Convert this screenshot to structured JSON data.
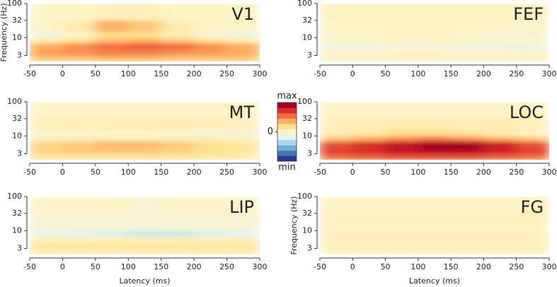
{
  "chart_data": [
    {
      "type": "heatmap",
      "title": "V1",
      "ylabel": "Frequency (Hz)",
      "x_bins": [
        -50,
        0,
        50,
        100,
        150,
        200,
        250,
        300
      ],
      "y_bins": [
        2,
        3,
        4.5,
        7,
        10,
        15,
        32,
        100
      ],
      "z": [
        [
          0.3,
          0.3,
          0.35,
          0.35,
          0.3,
          0.3,
          0.3
        ],
        [
          0.45,
          0.5,
          0.55,
          0.55,
          0.5,
          0.45,
          0.4
        ],
        [
          0.4,
          0.5,
          0.6,
          0.65,
          0.6,
          0.5,
          0.4
        ],
        [
          0.1,
          0.2,
          0.35,
          0.4,
          0.3,
          0.2,
          0.1
        ],
        [
          -0.1,
          0,
          0.2,
          0.2,
          0.05,
          -0.05,
          -0.1
        ],
        [
          0,
          0.1,
          0.4,
          0.3,
          0.1,
          0,
          0
        ],
        [
          0,
          0,
          0.05,
          0.05,
          0,
          0,
          0
        ]
      ],
      "xlim": [
        -50,
        300
      ],
      "ylim": [
        2,
        100
      ],
      "ylog": true,
      "xticks": [
        -50,
        0,
        50,
        100,
        150,
        200,
        250,
        300
      ],
      "yticks": [
        3,
        10,
        32,
        100
      ]
    },
    {
      "type": "heatmap",
      "title": "FEF",
      "x_bins": [
        -50,
        0,
        50,
        100,
        150,
        200,
        250,
        300
      ],
      "y_bins": [
        2,
        3,
        4.5,
        7,
        10,
        15,
        32,
        100
      ],
      "z": [
        [
          0.02,
          0.02,
          0.02,
          0.02,
          0.02,
          0.02,
          0.02
        ],
        [
          0,
          0,
          0,
          0,
          0,
          0,
          0
        ],
        [
          -0.1,
          -0.1,
          -0.08,
          -0.08,
          -0.1,
          -0.1,
          -0.12
        ],
        [
          0,
          0,
          0.02,
          0.02,
          0,
          0,
          0
        ],
        [
          -0.03,
          -0.03,
          0,
          0,
          -0.03,
          -0.05,
          -0.06
        ],
        [
          0,
          0,
          0,
          0,
          0,
          0,
          0
        ],
        [
          0.02,
          0.02,
          0.02,
          0.02,
          0.02,
          0.02,
          0.02
        ]
      ],
      "xlim": [
        -50,
        300
      ],
      "ylim": [
        2,
        100
      ],
      "ylog": true,
      "xticks": [
        -50,
        0,
        50,
        100,
        150,
        200,
        250,
        300
      ],
      "yticks": [
        3,
        10,
        32,
        100
      ]
    },
    {
      "type": "heatmap",
      "title": "MT",
      "x_bins": [
        -50,
        0,
        50,
        100,
        150,
        200,
        250,
        300
      ],
      "y_bins": [
        2,
        3,
        4.5,
        7,
        10,
        15,
        32,
        100
      ],
      "z": [
        [
          0.15,
          0.15,
          0.15,
          0.15,
          0.15,
          0.12,
          0.1
        ],
        [
          0.25,
          0.3,
          0.3,
          0.3,
          0.25,
          0.2,
          0.15
        ],
        [
          0.25,
          0.3,
          0.35,
          0.35,
          0.3,
          0.2,
          0.15
        ],
        [
          0.05,
          0.05,
          0.08,
          0.08,
          0.05,
          0.05,
          0.05
        ],
        [
          -0.05,
          -0.03,
          0,
          0,
          -0.05,
          -0.08,
          -0.1
        ],
        [
          0.05,
          0.05,
          0.05,
          0.05,
          0.08,
          0.05,
          0.05
        ],
        [
          0,
          0,
          0,
          0,
          0,
          0,
          0
        ]
      ],
      "xlim": [
        -50,
        300
      ],
      "ylim": [
        2,
        100
      ],
      "ylog": true,
      "xticks": [
        -50,
        0,
        50,
        100,
        150,
        200,
        250,
        300
      ],
      "yticks": [
        3,
        10,
        32,
        100
      ]
    },
    {
      "type": "heatmap",
      "title": "LOC",
      "x_bins": [
        -50,
        0,
        50,
        100,
        150,
        200,
        250,
        300
      ],
      "y_bins": [
        2,
        3,
        4.5,
        7,
        10,
        15,
        32,
        100
      ],
      "z": [
        [
          0.6,
          0.65,
          0.7,
          0.7,
          0.7,
          0.65,
          0.6
        ],
        [
          0.75,
          0.8,
          0.9,
          0.95,
          0.95,
          0.85,
          0.75
        ],
        [
          0.7,
          0.8,
          0.9,
          1,
          1,
          0.85,
          0.7
        ],
        [
          0.3,
          0.4,
          0.5,
          0.55,
          0.5,
          0.4,
          0.3
        ],
        [
          0.05,
          0.1,
          0.2,
          0.2,
          0.15,
          0.05,
          0
        ],
        [
          0.05,
          0.05,
          0.1,
          0.1,
          0.05,
          0.1,
          0.05
        ],
        [
          0,
          0,
          0,
          0,
          0,
          0,
          0
        ]
      ],
      "xlim": [
        -50,
        300
      ],
      "ylim": [
        2,
        100
      ],
      "ylog": true,
      "xticks": [
        -50,
        0,
        50,
        100,
        150,
        200,
        250,
        300
      ],
      "yticks": [
        3,
        10,
        32,
        100
      ]
    },
    {
      "type": "heatmap",
      "title": "LIP",
      "x_bins": [
        -50,
        0,
        50,
        100,
        150,
        200,
        250,
        300
      ],
      "y_bins": [
        2,
        3,
        4.5,
        7,
        10,
        15,
        32,
        100
      ],
      "z": [
        [
          0.1,
          0.1,
          0.1,
          0.1,
          0.1,
          0.1,
          0.1
        ],
        [
          0.15,
          0.15,
          0.15,
          0.15,
          0.15,
          0.12,
          0.12
        ],
        [
          0.05,
          0.05,
          0.05,
          0.05,
          0.05,
          0.05,
          0.05
        ],
        [
          -0.15,
          -0.2,
          -0.25,
          -0.3,
          -0.3,
          -0.25,
          -0.2
        ],
        [
          -0.05,
          -0.05,
          -0.05,
          -0.08,
          -0.05,
          -0.05,
          -0.05
        ],
        [
          -0.05,
          -0.05,
          -0.05,
          -0.05,
          -0.05,
          -0.05,
          -0.05
        ],
        [
          0,
          0,
          0,
          -0.05,
          0,
          0,
          0
        ]
      ],
      "xlim": [
        -50,
        300
      ],
      "ylim": [
        2,
        100
      ],
      "ylog": true,
      "xticks": [
        -50,
        0,
        50,
        100,
        150,
        200,
        250,
        300
      ],
      "yticks": [
        3,
        10,
        32,
        100
      ],
      "xlabel": "Latency (ms)"
    },
    {
      "type": "heatmap",
      "title": "FG",
      "ylabel": "Frequency (Hz)",
      "x_bins": [
        -50,
        0,
        50,
        100,
        150,
        200,
        250,
        300
      ],
      "y_bins": [
        2,
        3,
        4.5,
        7,
        10,
        15,
        32,
        100
      ],
      "z": [
        [
          0.03,
          0.03,
          0.03,
          0.03,
          0.03,
          0.03,
          0.03
        ],
        [
          0.04,
          0.04,
          0.04,
          0.04,
          0.04,
          0.04,
          0.04
        ],
        [
          0.05,
          0.05,
          0.05,
          0.05,
          0.05,
          0.05,
          0.05
        ],
        [
          0.03,
          0.03,
          0.03,
          0.03,
          0.03,
          0.03,
          0.03
        ],
        [
          0.02,
          0.02,
          0.02,
          0.02,
          0.02,
          0.02,
          0.02
        ],
        [
          0.03,
          0.03,
          0.03,
          0.03,
          0.03,
          0.03,
          0.03
        ],
        [
          0.02,
          0.02,
          0.02,
          0.02,
          0.02,
          0.02,
          0.02
        ]
      ],
      "xlim": [
        -50,
        300
      ],
      "ylim": [
        2,
        100
      ],
      "ylog": true,
      "xticks": [
        -50,
        0,
        50,
        100,
        150,
        200,
        250,
        300
      ],
      "yticks": [
        3,
        10,
        32,
        100
      ],
      "xlabel": "Latency (ms)"
    },
    {
      "type": "colorbar",
      "zlim": [
        -1,
        1
      ],
      "ticks": [
        {
          "value": 1,
          "label": "max"
        },
        0,
        {
          "value": -1,
          "label": "min"
        }
      ],
      "colors": [
        "#313695",
        "#4575b4",
        "#74add1",
        "#abd9e9",
        "#e0f3f8",
        "#fdf3c6",
        "#fee090",
        "#fdae61",
        "#f46d43",
        "#d73027",
        "#a50026"
      ]
    }
  ]
}
